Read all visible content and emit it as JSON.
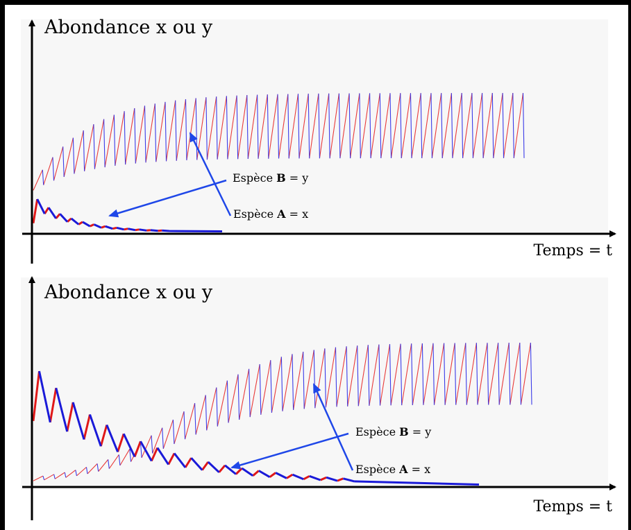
{
  "chart_data": [
    {
      "type": "line",
      "title": "",
      "ylabel": "Abondance x ou y",
      "xlabel": "Temps = t",
      "grid": false,
      "ylim": [
        0,
        1.0
      ],
      "series": [
        {
          "name": "Espèce B = y",
          "shape": "oscillating_saturation",
          "peaks_count": 48,
          "start_level": 0.33,
          "plateau_max": 0.98,
          "plateau_min": 0.52,
          "rise_rate": 0.18,
          "colors": [
            "#e83a3a",
            "#3a3ae8"
          ]
        },
        {
          "name": "Espèce A = x",
          "shape": "damped_oscillation",
          "peaks_count": 12,
          "start_level": 0.06,
          "peak_level": 0.23,
          "decay_rate": 0.3,
          "colors": [
            "#e01818",
            "#1a1ad8"
          ]
        }
      ],
      "annotations": [
        {
          "text_prefix": "Espèce ",
          "bold": "B",
          "suffix": " = y",
          "points_to": "Espèce A = x"
        },
        {
          "text_prefix": "Espèce ",
          "bold": "A",
          "suffix": " = x",
          "points_to": "Espèce B = y"
        }
      ]
    },
    {
      "type": "line",
      "title": "",
      "ylabel": "Abondance x ou y",
      "xlabel": "Temps = t",
      "grid": false,
      "ylim": [
        0,
        1.0
      ],
      "series": [
        {
          "name": "Espèce B = y",
          "shape": "delayed_oscillating_growth",
          "peaks_count": 46,
          "start_level": 0.02,
          "plateau_max": 1.0,
          "plateau_min": 0.56,
          "colors": [
            "#e83a3a",
            "#3a3ae8"
          ]
        },
        {
          "name": "Espèce A = x",
          "shape": "damped_oscillation",
          "peaks_count": 19,
          "start_level": 0.45,
          "peak_level": 0.8,
          "decay_rate": 0.16,
          "colors": [
            "#e01818",
            "#1a1ad8"
          ]
        }
      ],
      "annotations": [
        {
          "text_prefix": "Espèce ",
          "bold": "B",
          "suffix": " = y",
          "points_to": "Espèce A = x"
        },
        {
          "text_prefix": "Espèce ",
          "bold": "A",
          "suffix": " = x",
          "points_to": "Espèce B = y"
        }
      ]
    }
  ]
}
